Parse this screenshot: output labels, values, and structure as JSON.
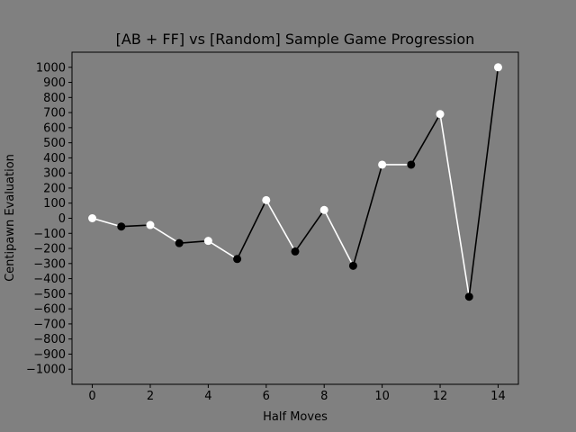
{
  "chart_data": {
    "type": "line",
    "title": "[AB + FF] vs [Random] Sample Game Progression",
    "xlabel": "Half Moves",
    "ylabel": "Centipawn Evaluation",
    "xlim": [
      -0.7,
      14.7
    ],
    "ylim": [
      -1100,
      1100
    ],
    "x_ticks": [
      0,
      2,
      4,
      6,
      8,
      10,
      12,
      14
    ],
    "y_ticks": [
      -1000,
      -900,
      -800,
      -700,
      -600,
      -500,
      -400,
      -300,
      -200,
      -100,
      0,
      100,
      200,
      300,
      400,
      500,
      600,
      700,
      800,
      900,
      1000
    ],
    "x": [
      0,
      1,
      2,
      3,
      4,
      5,
      6,
      7,
      8,
      9,
      10,
      11,
      12,
      13,
      14
    ],
    "y": [
      0,
      -55,
      -45,
      -165,
      -150,
      -270,
      120,
      -220,
      55,
      -315,
      355,
      355,
      690,
      -520,
      1000
    ],
    "segment_colors": [
      "#ffffff",
      "#000000"
    ],
    "point_colors": [
      "#ffffff",
      "#000000"
    ],
    "grid": false,
    "legend": false
  },
  "colors": {
    "background": "#808080",
    "plot_background": "#808080",
    "axes": "#000000",
    "white_move": "#ffffff",
    "black_move": "#000000"
  }
}
